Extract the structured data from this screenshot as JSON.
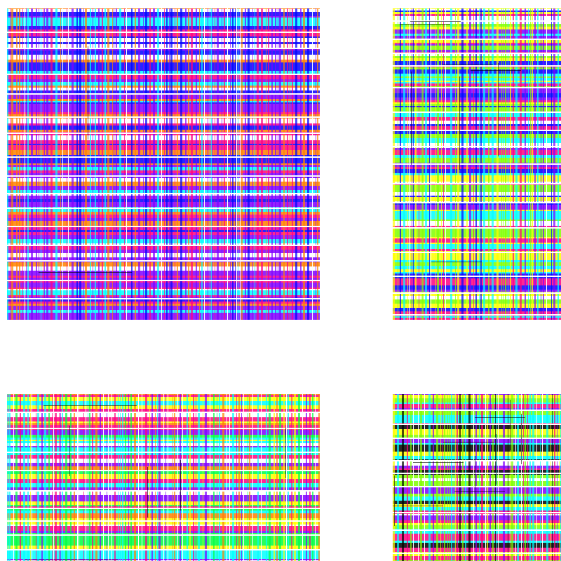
{
  "palette": {
    "cyan": "#00ffff",
    "orange": "#ff8000",
    "magenta": "#ff0080",
    "violet": "#8000ff",
    "blue": "#0000ff",
    "green": "#00ff40",
    "lime": "#80ff00",
    "yellow": "#ffff00",
    "black": "#000000",
    "white": "#ffffff"
  },
  "panels": [
    {
      "name": "pattern-panel-top-left",
      "dominant_colors": [
        "cyan",
        "orange",
        "magenta",
        "blue",
        "violet"
      ]
    },
    {
      "name": "pattern-panel-top-right",
      "dominant_colors": [
        "cyan",
        "magenta",
        "violet",
        "lime",
        "blue",
        "yellow"
      ]
    },
    {
      "name": "pattern-panel-bottom-left",
      "dominant_colors": [
        "cyan",
        "magenta",
        "yellow",
        "violet",
        "orange",
        "green"
      ]
    },
    {
      "name": "pattern-panel-bottom-right",
      "dominant_colors": [
        "cyan",
        "yellow",
        "magenta",
        "violet",
        "lime",
        "black"
      ]
    }
  ]
}
